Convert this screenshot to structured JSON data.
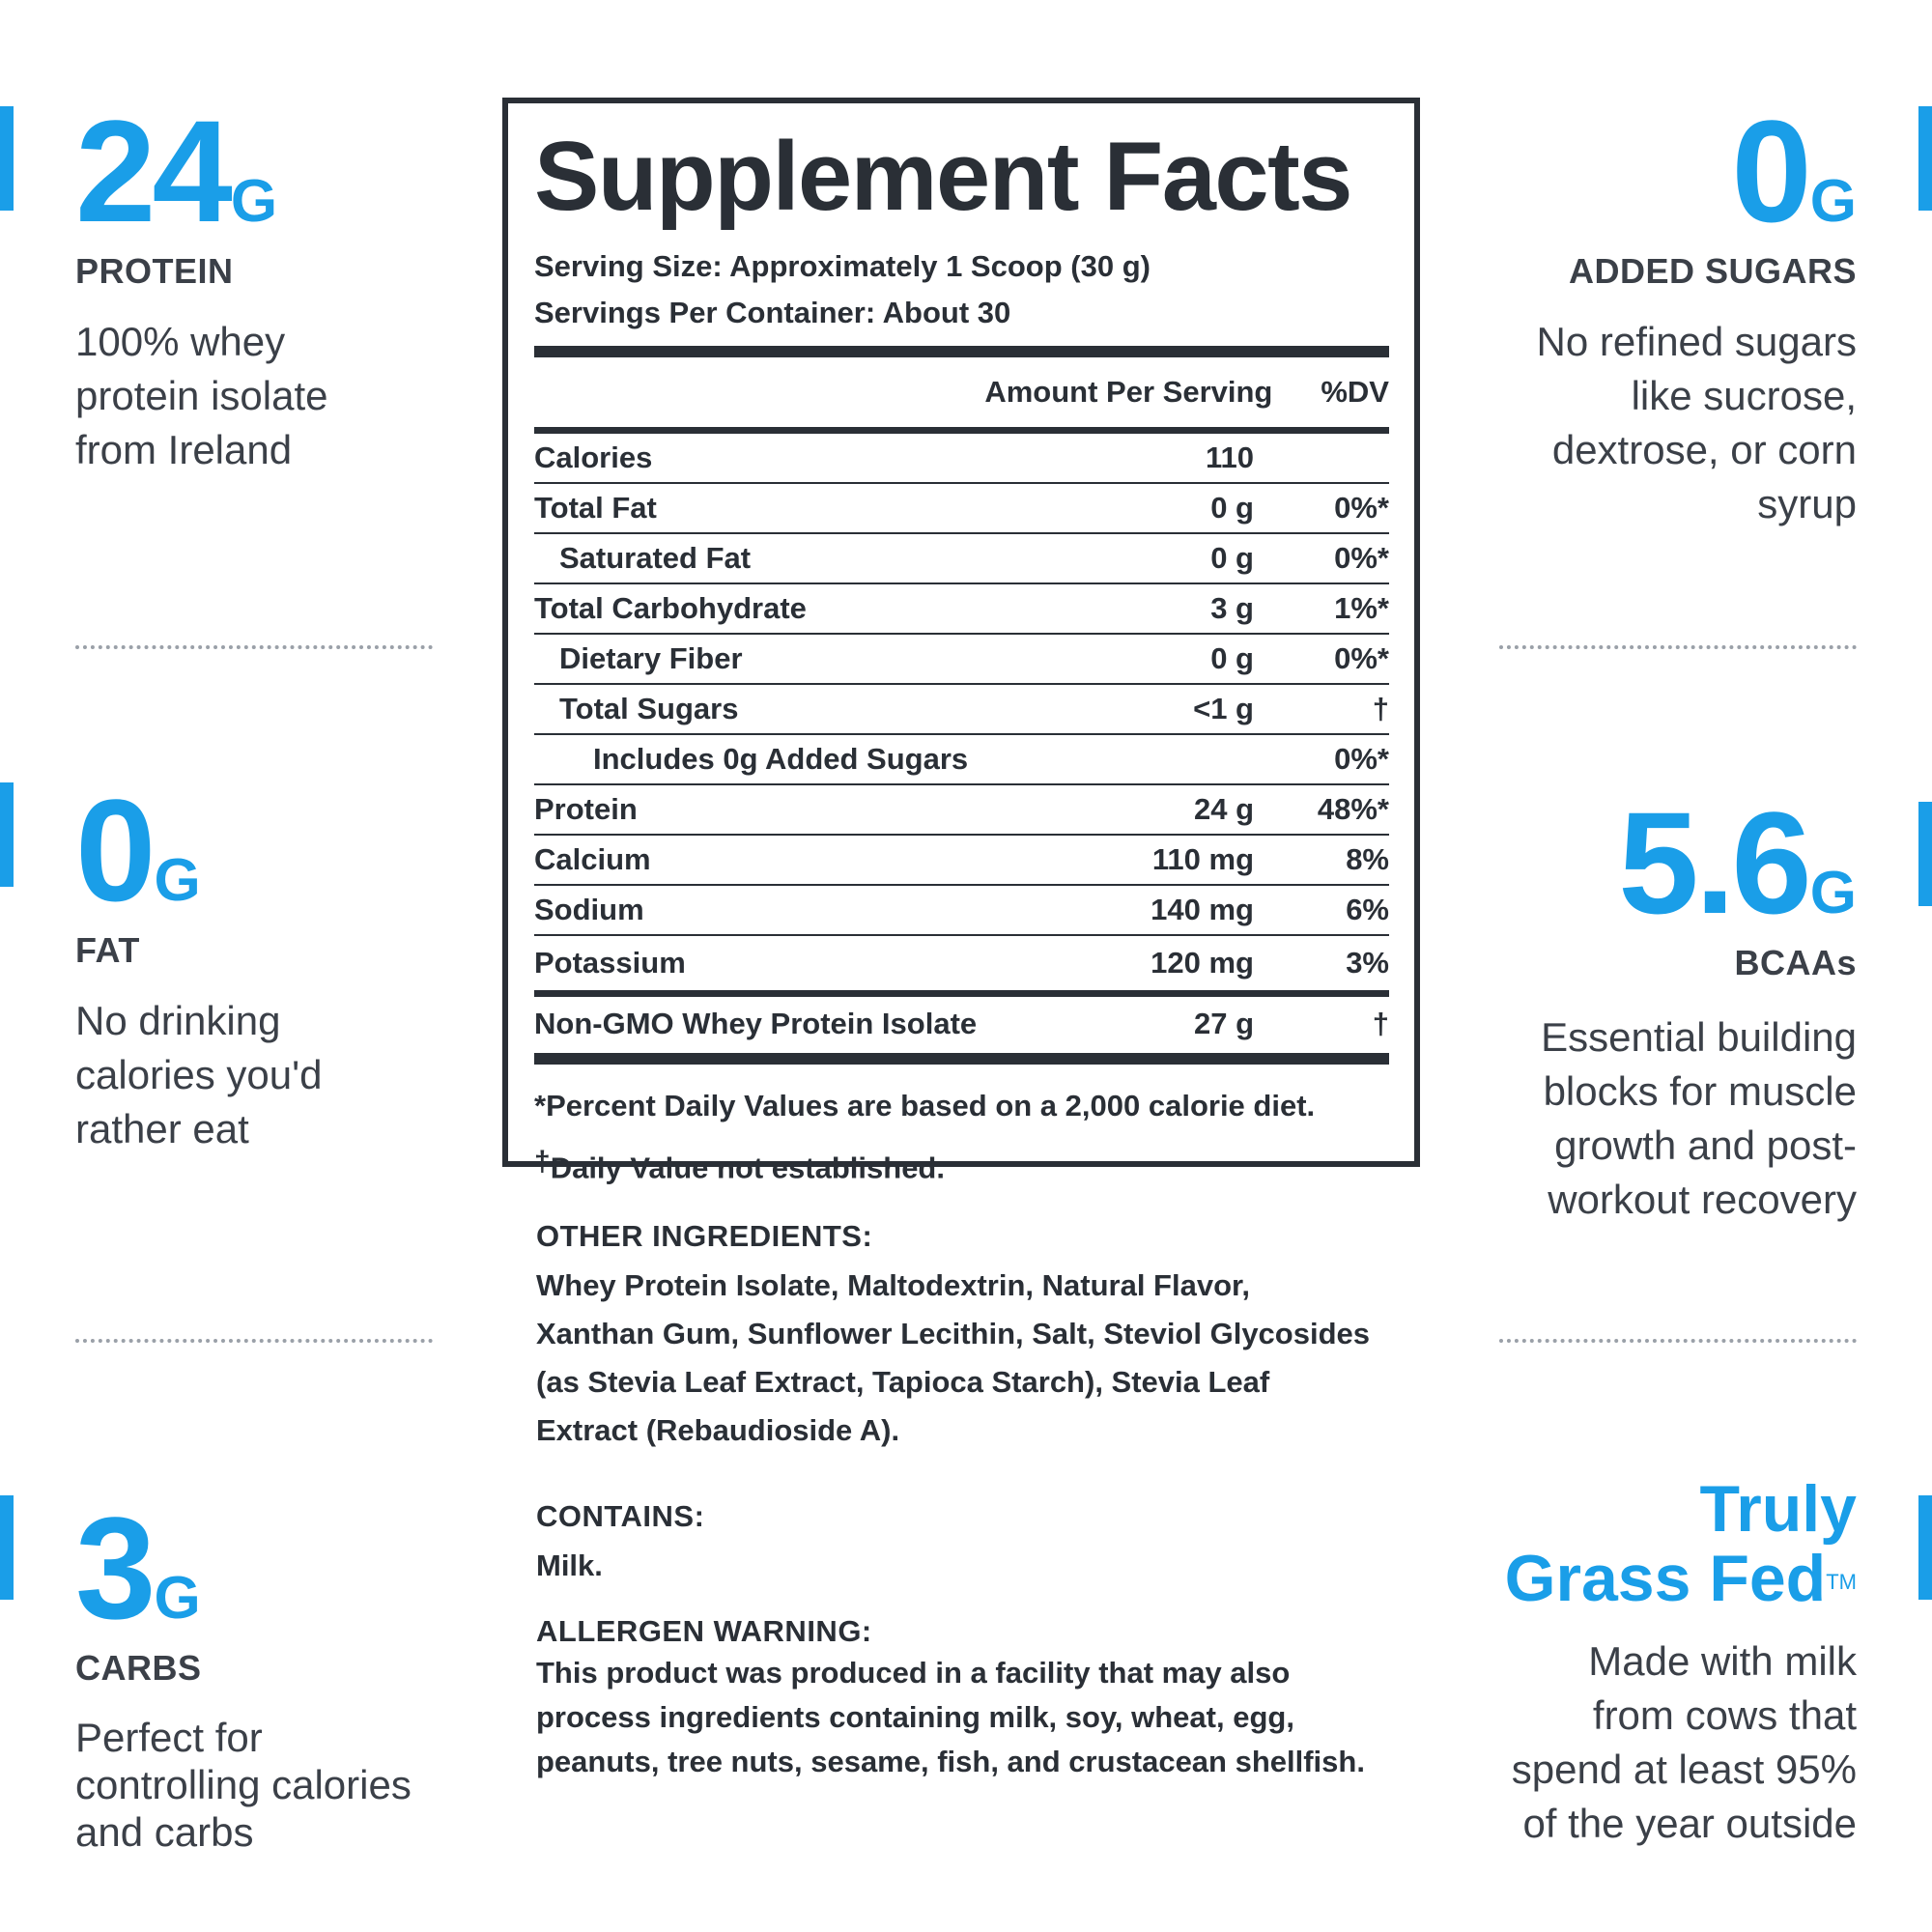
{
  "left_stats": [
    {
      "value": "24",
      "unit": "G",
      "label": "PROTEIN",
      "desc_lines": [
        "100% whey",
        "protein isolate",
        "from Ireland"
      ]
    },
    {
      "value": "0",
      "unit": "G",
      "label": "FAT",
      "desc_lines": [
        "No drinking",
        "calories you'd",
        "rather eat"
      ]
    },
    {
      "value": "3",
      "unit": "G",
      "label": "CARBS",
      "desc_lines": [
        "Perfect for",
        "controlling calories",
        "and carbs"
      ]
    }
  ],
  "right_stats": [
    {
      "value": "0",
      "unit": "G",
      "label": "ADDED SUGARS",
      "desc_lines": [
        "No refined sugars",
        "like sucrose,",
        "dextrose, or corn",
        "syrup"
      ]
    },
    {
      "value": "5.6",
      "unit": "G",
      "label": "BCAAs",
      "desc_lines": [
        "Essential building",
        "blocks for muscle",
        "growth and post-",
        "workout recovery"
      ]
    }
  ],
  "grass_fed": {
    "line1": "Truly",
    "line2": "Grass Fed",
    "tm": "TM",
    "desc_lines": [
      "Made with milk",
      "from cows that",
      "spend at least 95%",
      "of the year outside"
    ]
  },
  "facts": {
    "title": "Supplement Facts",
    "serving_size": "Serving Size: Approximately 1 Scoop (30 g)",
    "servings_per_container": "Servings Per Container: About 30",
    "amount_header": "Amount Per Serving",
    "dv_header": "%DV",
    "rows": [
      {
        "name": "Calories",
        "amount": "110",
        "dv": ""
      },
      {
        "name": "Total Fat",
        "amount": "0 g",
        "dv": "0%*"
      },
      {
        "name": "Saturated Fat",
        "amount": "0 g",
        "dv": "0%*"
      },
      {
        "name": "Total Carbohydrate",
        "amount": "3 g",
        "dv": "1%*"
      },
      {
        "name": "Dietary Fiber",
        "amount": "0 g",
        "dv": "0%*"
      },
      {
        "name": "Total Sugars",
        "amount": "<1 g",
        "dv": "†"
      },
      {
        "name": "Includes 0g Added Sugars",
        "amount": "",
        "dv": "0%*"
      },
      {
        "name": "Protein",
        "amount": "24 g",
        "dv": "48%*"
      },
      {
        "name": "Calcium",
        "amount": "110 mg",
        "dv": "8%"
      },
      {
        "name": "Sodium",
        "amount": "140 mg",
        "dv": "6%"
      },
      {
        "name": "Potassium",
        "amount": "120 mg",
        "dv": "3%"
      }
    ],
    "isolate": {
      "name": "Non-GMO Whey Protein Isolate",
      "amount": "27 g",
      "dv": "†"
    },
    "footnote1": "*Percent Daily Values are based on a 2,000 calorie diet.",
    "footnote2_symbol": "†",
    "footnote2": "Daily Value not established."
  },
  "other_ingredients": {
    "heading": "OTHER INGREDIENTS:",
    "lines": [
      "Whey Protein Isolate, Maltodextrin, Natural Flavor,",
      "Xanthan Gum, Sunflower Lecithin, Salt, Steviol Glycosides",
      "(as Stevia Leaf Extract, Tapioca Starch), Stevia Leaf",
      "Extract (Rebaudioside A)."
    ]
  },
  "contains": {
    "heading": "CONTAINS:",
    "text": "Milk."
  },
  "allergen": {
    "heading": "ALLERGEN WARNING:",
    "lines": [
      "This product was produced in a facility that may also",
      "process ingredients containing milk, soy, wheat, egg,",
      "peanuts, tree nuts, sesame, fish, and crustacean shellfish."
    ]
  },
  "colors": {
    "accent": "#1a9ee8",
    "text": "#2a2f36",
    "divider": "#9aa0a8"
  }
}
